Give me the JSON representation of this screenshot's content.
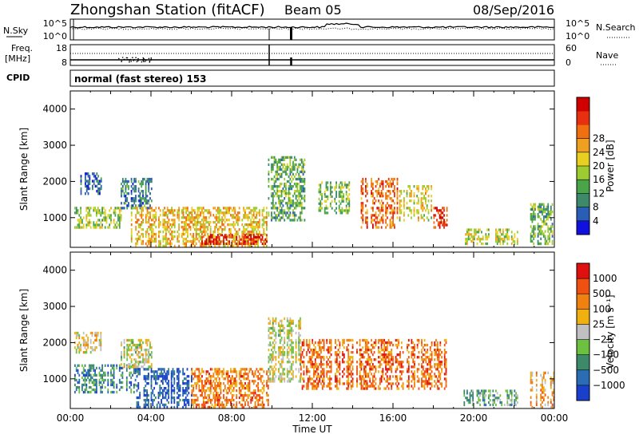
{
  "header": {
    "title": "Zhongshan Station (fitACF)",
    "beam": "Beam 05",
    "date": "08/Sep/2016"
  },
  "top_panels": {
    "nsky_label": "N.Sky",
    "nsky_left_ticks": [
      "10^5",
      "10^0"
    ],
    "nsearch_label": "N.Search",
    "nsearch_right_ticks": [
      "10^5",
      "10^0"
    ],
    "freq_label": "Freq.",
    "freq_unit": "[MHz]",
    "freq_ticks": [
      "18",
      "8"
    ],
    "nave_label": "Nave",
    "nave_ticks": [
      "60",
      "0"
    ],
    "cpid_label": "CPID",
    "cpid_text": "normal (fast stereo) 153"
  },
  "chart_data": [
    {
      "type": "heatmap",
      "name": "power",
      "xlabel": "",
      "ylabel": "Slant Range [km]",
      "xlim": [
        0,
        24
      ],
      "ylim": [
        180,
        4500
      ],
      "yticks": [
        "1000",
        "2000",
        "3000",
        "4000"
      ],
      "colorbar": {
        "label": "Power [dB]",
        "ticks": [
          "4",
          "8",
          "12",
          "16",
          "20",
          "24",
          "28"
        ],
        "colors": [
          "#1010e0",
          "#2a5db5",
          "#3c8a6a",
          "#4aa54a",
          "#9ccc30",
          "#e8d020",
          "#f0a020",
          "#f07010",
          "#e83010",
          "#d00000"
        ]
      },
      "echo_regions": [
        {
          "x": [
            0.2,
            2.5
          ],
          "y": [
            700,
            1300
          ],
          "level": 0.45
        },
        {
          "x": [
            0.5,
            1.5
          ],
          "y": [
            1700,
            2250
          ],
          "level": 0.15
        },
        {
          "x": [
            2.5,
            4.0
          ],
          "y": [
            1300,
            2100
          ],
          "level": 0.25
        },
        {
          "x": [
            3.0,
            9.8
          ],
          "y": [
            250,
            1300
          ],
          "level": 0.6
        },
        {
          "x": [
            6.5,
            9.8
          ],
          "y": [
            250,
            550
          ],
          "level": 0.95
        },
        {
          "x": [
            9.8,
            11.6
          ],
          "y": [
            900,
            2700
          ],
          "level": 0.35
        },
        {
          "x": [
            12.3,
            14.0
          ],
          "y": [
            1100,
            2000
          ],
          "level": 0.4
        },
        {
          "x": [
            14.4,
            16.2
          ],
          "y": [
            700,
            2100
          ],
          "level": 0.75
        },
        {
          "x": [
            16.3,
            17.9
          ],
          "y": [
            900,
            1900
          ],
          "level": 0.55
        },
        {
          "x": [
            18.0,
            18.7
          ],
          "y": [
            700,
            1300
          ],
          "level": 0.85
        },
        {
          "x": [
            19.5,
            22.2
          ],
          "y": [
            250,
            700
          ],
          "level": 0.5
        },
        {
          "x": [
            22.8,
            24.0
          ],
          "y": [
            250,
            1400
          ],
          "level": 0.35
        }
      ]
    },
    {
      "type": "heatmap",
      "name": "velocity",
      "xlabel": "Time UT",
      "ylabel": "Slant Range [km]",
      "xlim": [
        0,
        24
      ],
      "ylim": [
        180,
        4500
      ],
      "xticks": [
        "00:00",
        "04:00",
        "08:00",
        "12:00",
        "16:00",
        "20:00",
        "00:00"
      ],
      "yticks": [
        "1000",
        "2000",
        "3000",
        "4000"
      ],
      "colorbar": {
        "label": "Velocity [m s⁻¹]",
        "ticks": [
          "1000",
          "500",
          "100",
          "25",
          "−25",
          "−100",
          "−500",
          "−1000"
        ],
        "colors": [
          "#1a3fcc",
          "#2a6db5",
          "#3c8a6a",
          "#6ec040",
          "#c0c0c0",
          "#f0b010",
          "#f08010",
          "#f05010",
          "#e01010"
        ]
      },
      "echo_regions": [
        {
          "x": [
            0.2,
            3.2
          ],
          "y": [
            600,
            1400
          ],
          "level": 0.25
        },
        {
          "x": [
            0.2,
            1.5
          ],
          "y": [
            1700,
            2300
          ],
          "level": 0.55
        },
        {
          "x": [
            2.5,
            4.0
          ],
          "y": [
            1300,
            2100
          ],
          "level": 0.5
        },
        {
          "x": [
            3.2,
            6.0
          ],
          "y": [
            250,
            1300
          ],
          "level": 0.12
        },
        {
          "x": [
            6.0,
            9.8
          ],
          "y": [
            250,
            1300
          ],
          "level": 0.75
        },
        {
          "x": [
            9.8,
            11.4
          ],
          "y": [
            900,
            2700
          ],
          "level": 0.5
        },
        {
          "x": [
            11.4,
            18.6
          ],
          "y": [
            700,
            2100
          ],
          "level": 0.78
        },
        {
          "x": [
            19.5,
            22.3
          ],
          "y": [
            250,
            700
          ],
          "level": 0.35
        },
        {
          "x": [
            22.8,
            24.0
          ],
          "y": [
            250,
            1200
          ],
          "level": 0.65
        }
      ]
    }
  ]
}
